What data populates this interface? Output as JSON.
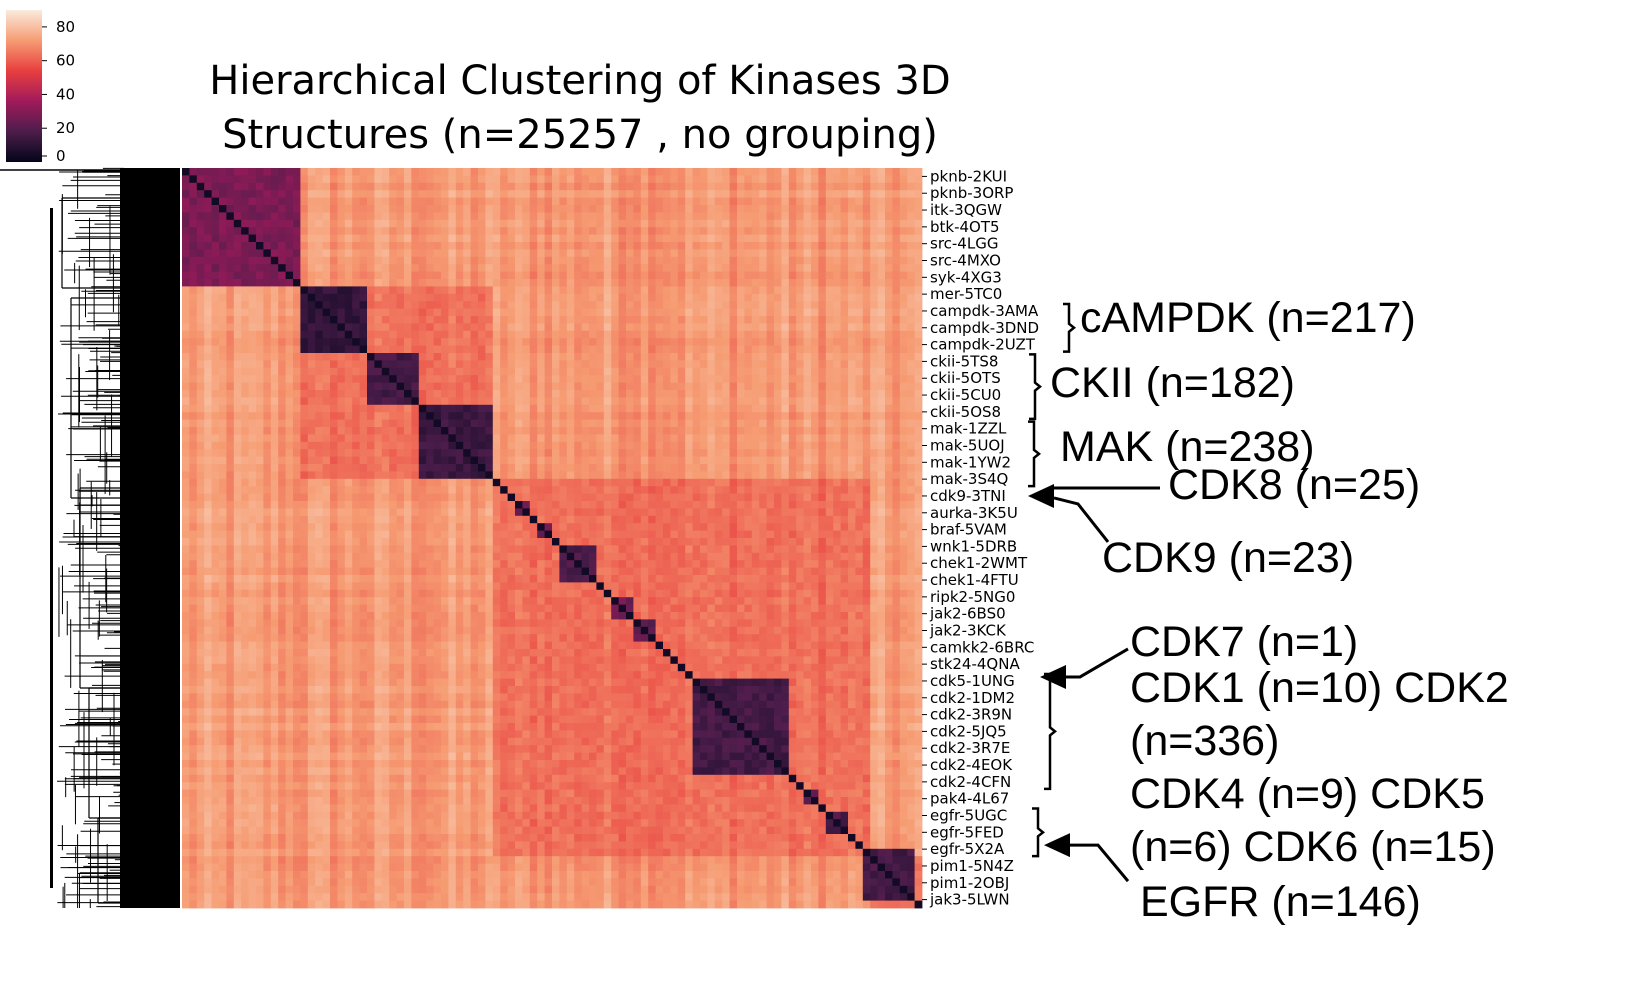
{
  "chart_data": {
    "type": "heatmap",
    "title_lines": [
      "Hierarchical Clustering of Kinases 3D",
      "Structures (n=25257 , no grouping)"
    ],
    "colorbar": {
      "ticks": [
        80,
        60,
        40,
        20,
        0
      ],
      "range": [
        0,
        90
      ]
    },
    "row_labels": [
      "pknb-2KUI",
      "pknb-3ORP",
      "itk-3QGW",
      "btk-4OT5",
      "src-4LGG",
      "src-4MXO",
      "syk-4XG3",
      "mer-5TC0",
      "campdk-3AMA",
      "campdk-3DND",
      "campdk-2UZT",
      "ckii-5TS8",
      "ckii-5OTS",
      "ckii-5CU0",
      "ckii-5OS8",
      "mak-1ZZL",
      "mak-5UOJ",
      "mak-1YW2",
      "mak-3S4Q",
      "cdk9-3TNI",
      "aurka-3K5U",
      "braf-5VAM",
      "wnk1-5DRB",
      "chek1-2WMT",
      "chek1-4FTU",
      "ripk2-5NG0",
      "jak2-6BS0",
      "jak2-3KCK",
      "camkk2-6BRC",
      "stk24-4QNA",
      "cdk5-1UNG",
      "cdk2-1DM2",
      "cdk2-3R9N",
      "cdk2-5JQ5",
      "cdk2-3R7E",
      "cdk2-4EOK",
      "cdk2-4CFN",
      "pak4-4L67",
      "egfr-5UGC",
      "egfr-5FED",
      "egfr-5X2A",
      "pim1-5N4Z",
      "pim1-2OBJ",
      "jak3-5LWN"
    ],
    "clusters": [
      {
        "name": "top",
        "start": 0,
        "end": 0.165,
        "intra": 24
      },
      {
        "name": "campdk",
        "start": 0.165,
        "end": 0.255,
        "intra": 8
      },
      {
        "name": "ckii",
        "start": 0.255,
        "end": 0.325,
        "intra": 12
      },
      {
        "name": "mak",
        "start": 0.325,
        "end": 0.425,
        "intra": 10
      },
      {
        "name": "cdk9",
        "start": 0.425,
        "end": 0.435,
        "intra": 18
      },
      {
        "name": "aurka",
        "start": 0.455,
        "end": 0.475,
        "intra": 22
      },
      {
        "name": "braf",
        "start": 0.485,
        "end": 0.505,
        "intra": 20
      },
      {
        "name": "chek1",
        "start": 0.51,
        "end": 0.56,
        "intra": 14
      },
      {
        "name": "ripk2",
        "start": 0.585,
        "end": 0.61,
        "intra": 22
      },
      {
        "name": "jak2",
        "start": 0.615,
        "end": 0.64,
        "intra": 18
      },
      {
        "name": "cdk",
        "start": 0.695,
        "end": 0.825,
        "intra": 12
      },
      {
        "name": "pak4",
        "start": 0.84,
        "end": 0.86,
        "intra": 20
      },
      {
        "name": "egfr",
        "start": 0.87,
        "end": 0.905,
        "intra": 14
      },
      {
        "name": "pim1",
        "start": 0.925,
        "end": 0.99,
        "intra": 12
      }
    ]
  },
  "annotations": {
    "campdk": "cAMPDK (n=217)",
    "ckii": "CKII (n=182)",
    "mak": "MAK (n=238)",
    "cdk8": "CDK8 (n=25)",
    "cdk9": "CDK9 (n=23)",
    "cdk_lines": [
      "CDK7 (n=1)",
      "CDK1 (n=10) CDK2",
      "(n=336)",
      "CDK4 (n=9) CDK5",
      "(n=6) CDK6 (n=15)"
    ],
    "egfr": "EGFR (n=146)"
  },
  "colors": {
    "cmap": "rocket",
    "line": "#000000"
  }
}
